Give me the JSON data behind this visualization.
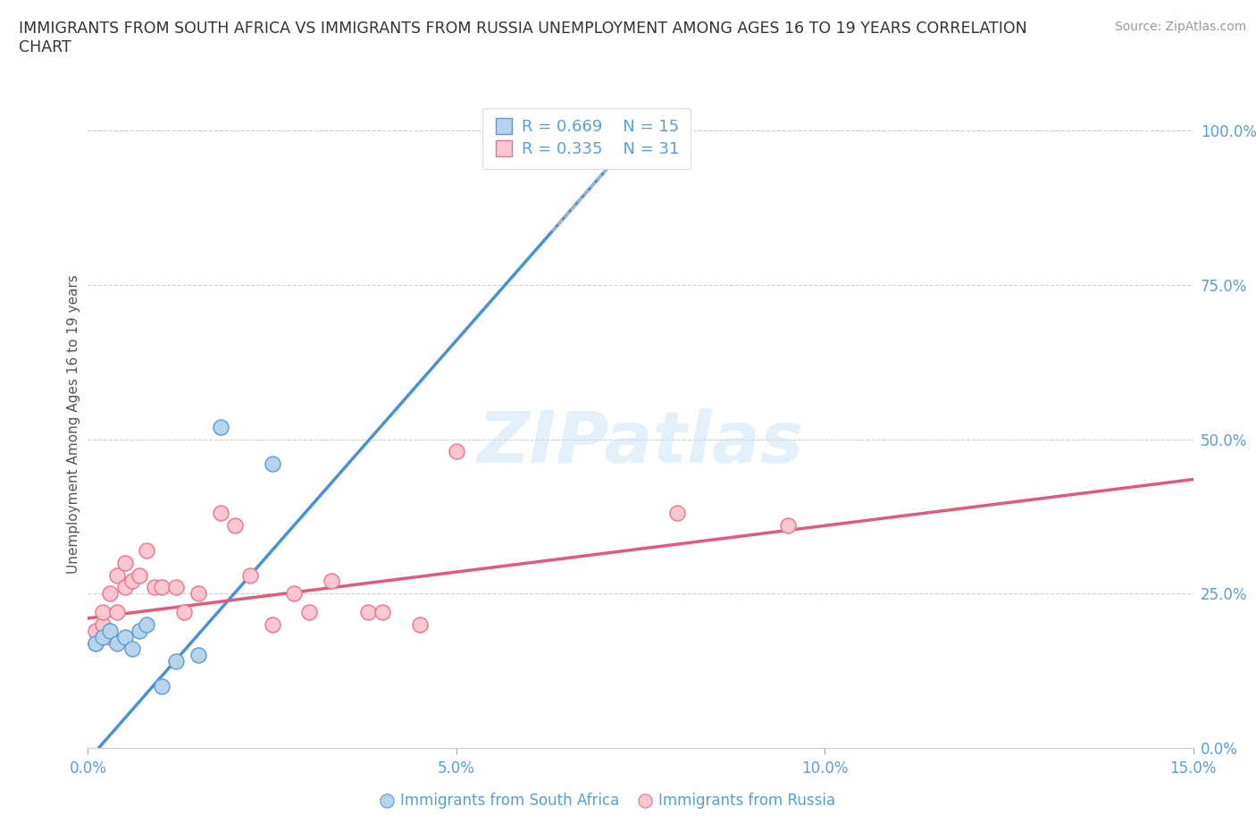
{
  "title_line1": "IMMIGRANTS FROM SOUTH AFRICA VS IMMIGRANTS FROM RUSSIA UNEMPLOYMENT AMONG AGES 16 TO 19 YEARS CORRELATION",
  "title_line2": "CHART",
  "source": "Source: ZipAtlas.com",
  "ylabel": "Unemployment Among Ages 16 to 19 years",
  "watermark": "ZIPatlas",
  "xlim": [
    0.0,
    0.15
  ],
  "ylim": [
    0.0,
    1.05
  ],
  "xtick_vals": [
    0.0,
    0.05,
    0.1,
    0.15
  ],
  "xtick_labels": [
    "0.0%",
    "5.0%",
    "10.0%",
    "15.0%"
  ],
  "ytick_vals": [
    0.0,
    0.25,
    0.5,
    0.75,
    1.0
  ],
  "ytick_labels": [
    "0.0%",
    "25.0%",
    "50.0%",
    "75.0%",
    "100.0%"
  ],
  "south_africa_fill": "#b8d4ed",
  "south_africa_edge": "#5b9bd5",
  "russia_fill": "#f9c6d2",
  "russia_edge": "#e8748a",
  "sa_line_color": "#4a90d9",
  "ru_line_color": "#e05a7a",
  "dash_color": "#bbbbbb",
  "text_color": "#5a9fd4",
  "label_color": "#555555",
  "grid_color": "#d0d0d0",
  "bg_color": "#ffffff",
  "sa_R": 0.669,
  "sa_N": 15,
  "ru_R": 0.335,
  "ru_N": 31,
  "sa_x": [
    0.001,
    0.002,
    0.003,
    0.004,
    0.005,
    0.006,
    0.007,
    0.008,
    0.01,
    0.012,
    0.015,
    0.018,
    0.025,
    0.055,
    0.063
  ],
  "sa_y": [
    0.17,
    0.18,
    0.19,
    0.17,
    0.18,
    0.16,
    0.19,
    0.2,
    0.1,
    0.14,
    0.15,
    0.52,
    0.46,
    0.96,
    0.97
  ],
  "ru_x": [
    0.001,
    0.001,
    0.002,
    0.002,
    0.003,
    0.003,
    0.004,
    0.004,
    0.005,
    0.005,
    0.006,
    0.007,
    0.008,
    0.009,
    0.01,
    0.012,
    0.013,
    0.015,
    0.018,
    0.02,
    0.022,
    0.025,
    0.028,
    0.03,
    0.033,
    0.038,
    0.04,
    0.045,
    0.05,
    0.08,
    0.095
  ],
  "ru_y": [
    0.17,
    0.19,
    0.2,
    0.22,
    0.18,
    0.25,
    0.22,
    0.28,
    0.26,
    0.3,
    0.27,
    0.28,
    0.32,
    0.26,
    0.26,
    0.26,
    0.22,
    0.25,
    0.38,
    0.36,
    0.28,
    0.2,
    0.25,
    0.22,
    0.27,
    0.22,
    0.22,
    0.2,
    0.48,
    0.38,
    0.36
  ],
  "sa_trendline_x0": 0.0,
  "sa_trendline_y0": -0.02,
  "sa_trendline_x1": 0.075,
  "sa_trendline_y1": 1.0,
  "ru_trendline_x0": 0.0,
  "ru_trendline_y0": 0.21,
  "ru_trendline_x1": 0.15,
  "ru_trendline_y1": 0.435
}
